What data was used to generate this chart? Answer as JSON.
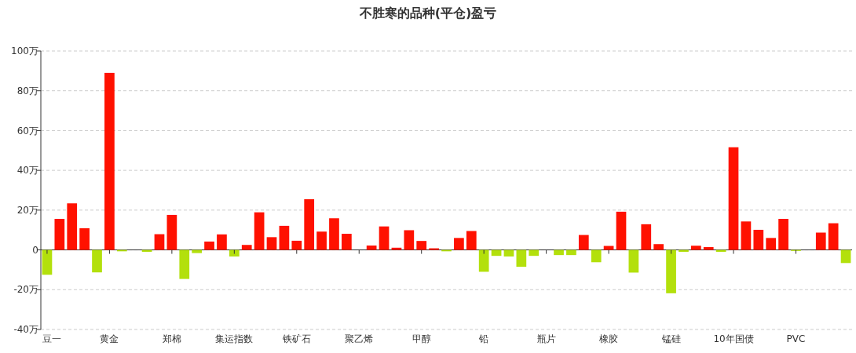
{
  "chart_data": {
    "type": "bar",
    "title": "不胜寒的品种(平仓)盈亏",
    "categories": [
      "豆一",
      null,
      null,
      null,
      null,
      "黄金",
      null,
      null,
      null,
      null,
      "郑棉",
      null,
      null,
      null,
      null,
      "集运指数",
      null,
      null,
      null,
      null,
      "铁矿石",
      null,
      null,
      null,
      null,
      "聚乙烯",
      null,
      null,
      null,
      null,
      "甲醇",
      null,
      null,
      null,
      null,
      "铅",
      null,
      null,
      null,
      null,
      "瓶片",
      null,
      null,
      null,
      null,
      "橡胶",
      null,
      null,
      null,
      null,
      "锰硅",
      null,
      null,
      null,
      null,
      "10年国债",
      null,
      null,
      null,
      null,
      "PVC",
      null,
      null,
      null,
      null
    ],
    "values": [
      -12.5,
      15.6,
      23.4,
      10.9,
      -11.3,
      89.0,
      -0.7,
      0,
      -1.0,
      7.9,
      17.6,
      -14.6,
      -1.6,
      4.2,
      7.8,
      -3.3,
      2.5,
      18.9,
      6.4,
      12.1,
      4.6,
      25.5,
      9.2,
      15.9,
      8.1,
      0,
      2.2,
      11.8,
      1.1,
      9.9,
      4.5,
      0.8,
      -0.7,
      6.0,
      9.5,
      -11.0,
      -3.0,
      -3.3,
      -8.5,
      -3.0,
      0,
      -2.6,
      -2.6,
      7.5,
      -6.2,
      2.0,
      19.2,
      -11.4,
      12.9,
      2.9,
      -21.8,
      -1.0,
      2.1,
      1.4,
      -1.0,
      51.6,
      14.3,
      10.1,
      6.0,
      15.6,
      -0.5,
      0,
      8.7,
      13.4,
      -6.6
    ],
    "colors": [
      "#b3e00c",
      "#ff1100",
      "#ff1100",
      "#ff1100",
      "#b3e00c",
      "#ff1100",
      "#b3e00c",
      "#ff1100",
      "#b3e00c",
      "#ff1100",
      "#ff1100",
      "#b3e00c",
      "#b3e00c",
      "#ff1100",
      "#ff1100",
      "#b3e00c",
      "#ff1100",
      "#ff1100",
      "#ff1100",
      "#ff1100",
      "#ff1100",
      "#ff1100",
      "#ff1100",
      "#ff1100",
      "#ff1100",
      "#ff1100",
      "#ff1100",
      "#ff1100",
      "#ff1100",
      "#ff1100",
      "#ff1100",
      "#ff1100",
      "#b3e00c",
      "#ff1100",
      "#ff1100",
      "#b3e00c",
      "#b3e00c",
      "#b3e00c",
      "#b3e00c",
      "#b3e00c",
      "#b3e00c",
      "#b3e00c",
      "#b3e00c",
      "#ff1100",
      "#b3e00c",
      "#ff1100",
      "#ff1100",
      "#b3e00c",
      "#ff1100",
      "#ff1100",
      "#b3e00c",
      "#b3e00c",
      "#ff1100",
      "#ff1100",
      "#b3e00c",
      "#ff1100",
      "#ff1100",
      "#ff1100",
      "#ff1100",
      "#ff1100",
      "#b3e00c",
      "#ff1100",
      "#ff1100",
      "#ff1100",
      "#b3e00c"
    ],
    "ylim": [
      -40,
      100
    ],
    "yticks": [
      {
        "value": -40,
        "label": "-40万"
      },
      {
        "value": -20,
        "label": "-20万"
      },
      {
        "value": 0,
        "label": "0"
      },
      {
        "value": 20,
        "label": "20万"
      },
      {
        "value": 40,
        "label": "40万"
      },
      {
        "value": 60,
        "label": "60万"
      },
      {
        "value": 80,
        "label": "80万"
      },
      {
        "value": 100,
        "label": "100万"
      }
    ],
    "grid": "y"
  }
}
